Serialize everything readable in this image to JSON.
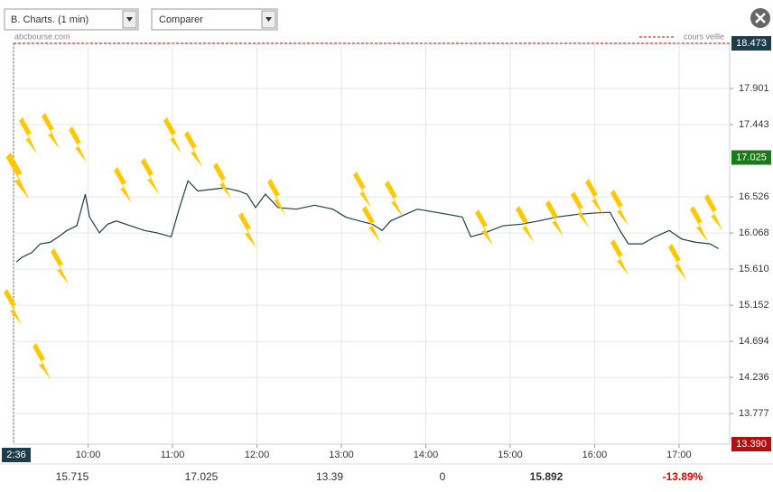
{
  "toolbar": {
    "period_select": "B. Charts. (1 min)",
    "compare_select": "Comparer"
  },
  "chart_data": {
    "type": "line",
    "source": "abcbourse.com",
    "legend": "cours veille",
    "x": [
      549,
      553,
      560,
      566,
      573,
      579,
      585,
      592,
      598,
      601,
      608,
      614,
      620,
      630,
      640,
      649,
      659,
      665,
      671,
      678,
      687,
      697,
      707,
      713,
      719,
      726,
      735,
      748,
      761,
      774,
      783,
      793,
      802,
      809,
      815,
      825,
      834,
      844,
      857,
      866,
      872,
      882,
      895,
      908,
      920,
      933,
      946,
      959,
      971,
      978,
      984,
      994,
      1003,
      1013,
      1022,
      1032,
      1042,
      1048
    ],
    "series": [
      {
        "color": "#1d3d4c",
        "values": [
          15.7,
          15.76,
          15.82,
          15.93,
          15.95,
          16.02,
          16.1,
          16.16,
          16.56,
          16.27,
          16.07,
          16.18,
          16.22,
          16.16,
          16.1,
          16.07,
          16.02,
          16.39,
          16.73,
          16.6,
          16.62,
          16.64,
          16.6,
          16.56,
          16.39,
          16.56,
          16.39,
          16.37,
          16.42,
          16.37,
          16.27,
          16.22,
          16.18,
          16.1,
          16.22,
          16.3,
          16.37,
          16.34,
          16.3,
          16.27,
          16.02,
          16.07,
          16.16,
          16.18,
          16.22,
          16.27,
          16.3,
          16.32,
          16.33,
          16.1,
          15.93,
          15.93,
          16.02,
          16.1,
          15.99,
          15.95,
          15.93,
          15.87
        ]
      }
    ],
    "xlim": [
      547,
      1056
    ],
    "xticks": [
      {
        "value": 600,
        "label": "10:00"
      },
      {
        "value": 660,
        "label": "11:00"
      },
      {
        "value": 720,
        "label": "12:00"
      },
      {
        "value": 780,
        "label": "13:00"
      },
      {
        "value": 840,
        "label": "14:00"
      },
      {
        "value": 900,
        "label": "15:00"
      },
      {
        "value": 960,
        "label": "16:00"
      },
      {
        "value": 1020,
        "label": "17:00"
      }
    ],
    "ylim": [
      13.39,
      18.473
    ],
    "yticks": [
      13.777,
      14.236,
      14.694,
      15.152,
      {
        "value": 15.61,
        "label": "15.610"
      },
      16.068,
      16.526,
      17.443,
      17.901
    ],
    "grid": true,
    "markers": {
      "high": 18.473,
      "current": 17.025,
      "low": {
        "value": 13.39,
        "label": "13.390"
      },
      "cursor_time": "2:36"
    }
  },
  "stats": [
    "15.715",
    "17.025",
    "13.39",
    "0",
    "15.892",
    "-13.89%"
  ]
}
